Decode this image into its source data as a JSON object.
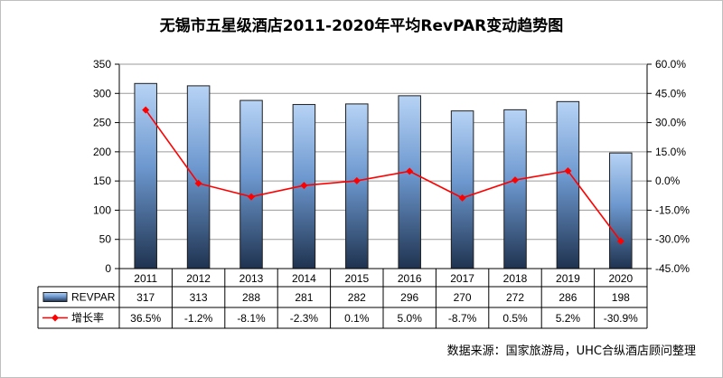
{
  "title": "无锡市五星级酒店2011-2020年平均RevPAR变动趋势图",
  "source": "数据来源：国家旅游局，UHC合纵酒店顾问整理",
  "chart_data": {
    "type": "bar",
    "categories": [
      "2011",
      "2012",
      "2013",
      "2014",
      "2015",
      "2016",
      "2017",
      "2018",
      "2019",
      "2020"
    ],
    "series": [
      {
        "name": "REVPAR",
        "type": "bar",
        "axis": "left",
        "values": [
          317,
          313,
          288,
          281,
          282,
          296,
          270,
          272,
          286,
          198
        ],
        "labels": [
          "317",
          "313",
          "288",
          "281",
          "282",
          "296",
          "270",
          "272",
          "286",
          "198"
        ],
        "color": "#5b8fd6"
      },
      {
        "name": "增长率",
        "type": "line",
        "axis": "right",
        "values": [
          36.5,
          -1.2,
          -8.1,
          -2.3,
          0.1,
          5.0,
          -8.7,
          0.5,
          5.2,
          -30.9
        ],
        "labels": [
          "36.5%",
          "-1.2%",
          "-8.1%",
          "-2.3%",
          "0.1%",
          "5.0%",
          "-8.7%",
          "0.5%",
          "5.2%",
          "-30.9%"
        ],
        "color": "#ff0000"
      }
    ],
    "y_left": {
      "min": 0,
      "max": 350,
      "ticks": [
        0,
        50,
        100,
        150,
        200,
        250,
        300,
        350
      ],
      "tick_labels": [
        "0",
        "50",
        "100",
        "150",
        "200",
        "250",
        "300",
        "350"
      ]
    },
    "y_right": {
      "min": -45,
      "max": 60,
      "ticks": [
        -45,
        -30,
        -15,
        0,
        15,
        30,
        45,
        60
      ],
      "tick_labels": [
        "-45.0%",
        "-30.0%",
        "-15.0%",
        "0.0%",
        "15.0%",
        "30.0%",
        "45.0%",
        "60.0%"
      ]
    },
    "grid": true,
    "legend": "data-table"
  }
}
